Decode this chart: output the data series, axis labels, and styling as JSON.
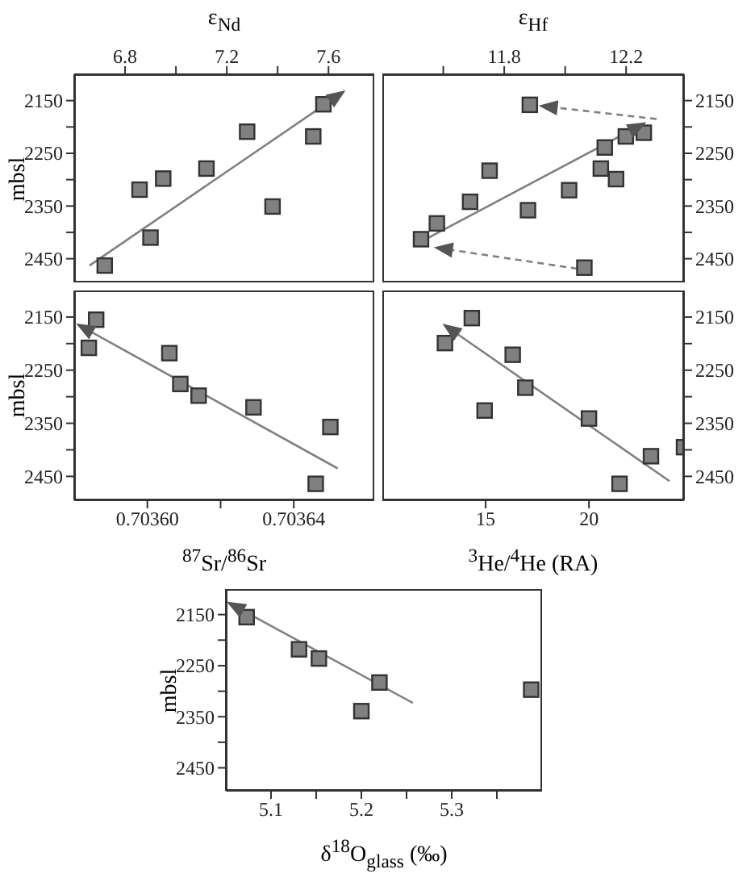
{
  "chart_data": [
    {
      "type": "scatter",
      "xlabel": "ε$_{Nd}$",
      "ylabel": "mbsl",
      "marker": "square",
      "xlim": [
        6.6,
        7.78
      ],
      "xticks": [
        6.8,
        {
          "value": 7.0,
          "label": null
        },
        7.2,
        {
          "value": 7.4,
          "label": null
        },
        7.6
      ],
      "ylim": [
        2495,
        2100
      ],
      "yticks": [
        2150,
        {
          "value": 2200,
          "label": null
        },
        2250,
        {
          "value": 2300,
          "label": null
        },
        2350,
        {
          "value": 2400,
          "label": null
        },
        2450
      ],
      "series": [
        {
          "type": "scatter",
          "color": "#808080",
          "x": [
            6.72,
            6.857,
            6.9,
            6.95,
            7.12,
            7.28,
            7.38,
            7.54,
            7.58
          ],
          "values": [
            2463,
            2319,
            2410,
            2298,
            2279,
            2209,
            2351,
            2218,
            2157
          ]
        },
        {
          "type": "line",
          "color": "#808080",
          "marker": "none",
          "line_style": "solid",
          "x": [
            6.66,
            7.66
          ],
          "values": [
            2463,
            2133
          ]
        }
      ]
    },
    {
      "type": "scatter",
      "xlabel": "ε$_{Hf}$",
      "marker": "square",
      "xlim": [
        11.4,
        12.39
      ],
      "xticks": [
        {
          "value": 11.6,
          "label": null
        },
        11.8,
        {
          "value": 12.0,
          "label": null
        },
        12.2
      ],
      "ylim": [
        2495,
        2100
      ],
      "yticks": [
        2150,
        {
          "value": 2200,
          "label": null
        },
        2250,
        {
          "value": 2300,
          "label": null
        },
        2350,
        {
          "value": 2400,
          "label": null
        },
        2450
      ],
      "series": [
        {
          "type": "scatter",
          "color": "#808080",
          "x": [
            11.884,
            12.258,
            12.199,
            12.13,
            12.117,
            12.167,
            12.013,
            11.752,
            11.688,
            11.878,
            11.579,
            11.527,
            12.063
          ],
          "values": [
            2158,
            2211,
            2218,
            2239,
            2279,
            2299,
            2320,
            2283,
            2342,
            2358,
            2383,
            2413,
            2467
          ]
        },
        {
          "type": "line",
          "color": "#808080",
          "marker": "none",
          "line_style": "solid",
          "x": [
            11.51,
            12.26
          ],
          "values": [
            2423,
            2193
          ]
        },
        {
          "type": "line",
          "color": "#808080",
          "marker": "none",
          "line_style": "dashed",
          "x": [
            12.3,
            11.92
          ],
          "values": [
            2185,
            2160
          ]
        },
        {
          "type": "line",
          "color": "#808080",
          "marker": "none",
          "line_style": "dashed",
          "x": [
            12.04,
            11.576
          ],
          "values": [
            2469,
            2429
          ]
        }
      ]
    },
    {
      "type": "scatter",
      "xlabel": "$^{87}$Sr/$^{86}$Sr",
      "ylabel": "mbsl",
      "marker": "square",
      "xlim": [
        0.70358,
        0.703662
      ],
      "xticks": [
        {
          "value": 0.7036,
          "label": "0.70360"
        },
        {
          "value": 0.70362,
          "label": null
        },
        {
          "value": 0.70364,
          "label": "0.70364"
        }
      ],
      "ylim": [
        2495,
        2100
      ],
      "yticks": [
        2150,
        {
          "value": 2200,
          "label": null
        },
        2250,
        {
          "value": 2300,
          "label": null
        },
        2350,
        {
          "value": 2400,
          "label": null
        },
        2450
      ],
      "series": [
        {
          "type": "scatter",
          "color": "#808080",
          "x": [
            0.703586,
            0.703584,
            0.703606,
            0.703609,
            0.703614,
            0.703629,
            0.70365,
            0.703646
          ],
          "values": [
            2155,
            2208,
            2218,
            2276,
            2298,
            2320,
            2357,
            2464
          ]
        },
        {
          "type": "line",
          "color": "#808080",
          "marker": "none",
          "line_style": "solid",
          "x": [
            0.703652,
            0.703581
          ],
          "values": [
            2435,
            2164
          ]
        }
      ]
    },
    {
      "type": "scatter",
      "xlabel": "$^{3}$He/$^{4}$He (RA)",
      "marker": "square",
      "xlim": [
        10,
        24.6
      ],
      "xticks": [
        15,
        20
      ],
      "ylim": [
        2495,
        2100
      ],
      "yticks": [
        2150,
        {
          "value": 2200,
          "label": null
        },
        2250,
        {
          "value": 2300,
          "label": null
        },
        2350,
        {
          "value": 2400,
          "label": null
        },
        2450
      ],
      "series": [
        {
          "type": "scatter",
          "color": "#808080",
          "x": [
            14.33,
            13.03,
            16.31,
            16.92,
            14.95,
            20.0,
            23.0,
            24.6,
            21.48
          ],
          "values": [
            2152,
            2199,
            2221,
            2283,
            2326,
            2341,
            2412,
            2395,
            2464
          ]
        },
        {
          "type": "line",
          "color": "#808080",
          "marker": "none",
          "line_style": "solid",
          "x": [
            23.9,
            13.0
          ],
          "values": [
            2459,
            2165
          ]
        }
      ]
    },
    {
      "type": "scatter",
      "xlabel": "δ$^{18}$O$_{glass}$ (‰)",
      "ylabel": "mbsl",
      "marker": "square",
      "xlim": [
        5.05,
        5.4
      ],
      "xticks": [
        5.1,
        {
          "value": 5.15,
          "label": null
        },
        5.2,
        {
          "value": 5.25,
          "label": null
        },
        5.3,
        {
          "value": 5.35,
          "label": null
        }
      ],
      "ylim": [
        2495,
        2100
      ],
      "yticks": [
        2150,
        {
          "value": 2200,
          "label": null
        },
        2250,
        {
          "value": 2300,
          "label": null
        },
        2350,
        {
          "value": 2400,
          "label": null
        },
        2450
      ],
      "series": [
        {
          "type": "scatter",
          "color": "#808080",
          "x": [
            5.073,
            5.131,
            5.153,
            5.22,
            5.2,
            5.388
          ],
          "values": [
            2155,
            2218,
            2236,
            2283,
            2339,
            2297
          ]
        },
        {
          "type": "line",
          "color": "#808080",
          "marker": "none",
          "line_style": "solid",
          "x": [
            5.257,
            5.053
          ],
          "values": [
            2323,
            2127
          ]
        }
      ]
    }
  ]
}
